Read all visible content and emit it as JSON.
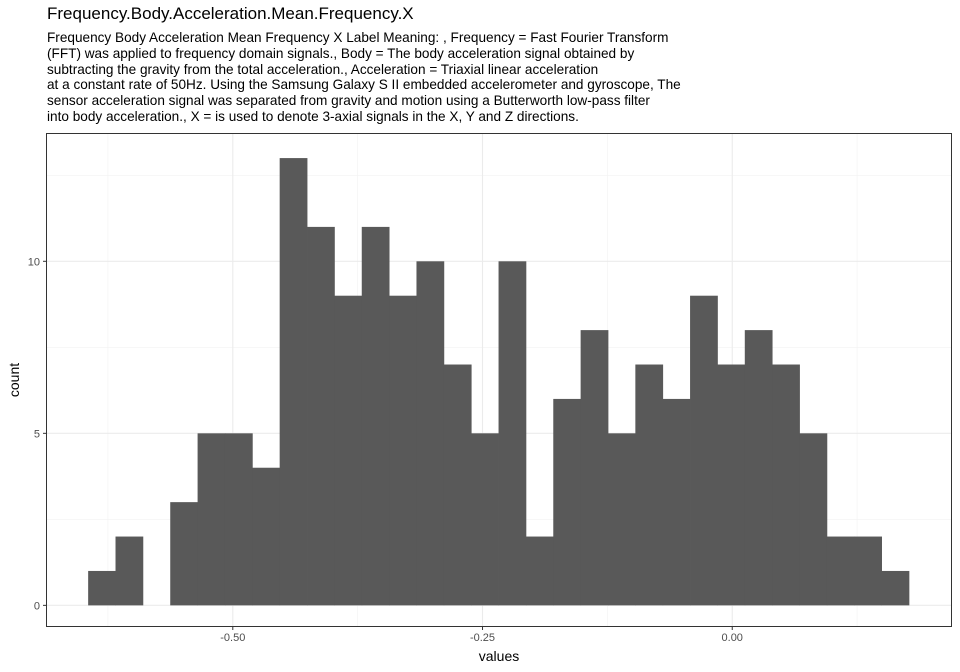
{
  "title": "Frequency.Body.Acceleration.Mean.Frequency.X",
  "subtitle_lines": [
    "Frequency Body Acceleration Mean Frequency X Label Meaning: , Frequency = Fast Fourier Transform",
    "(FFT) was applied to frequency domain signals., Body = The body acceleration signal obtained by",
    "subtracting the gravity from the total acceleration., Acceleration = Triaxial linear acceleration",
    "at a constant rate of 50Hz. Using the Samsung Galaxy S II embedded accelerometer and gyroscope, The",
    "sensor acceleration signal was separated from gravity and motion using a Butterworth low-pass filter",
    "into body acceleration., X = is used to denote 3-axial signals in the X, Y and Z directions."
  ],
  "chart_data": {
    "type": "bar",
    "subtype": "histogram",
    "xlabel": "values",
    "ylabel": "count",
    "xlim": [
      -0.686,
      0.219
    ],
    "ylim": [
      -0.6,
      13.7
    ],
    "x_ticks": [
      {
        "value": -0.5,
        "label": "-0.50"
      },
      {
        "value": -0.25,
        "label": "-0.25"
      },
      {
        "value": 0.0,
        "label": "0.00"
      }
    ],
    "y_ticks": [
      {
        "value": 0,
        "label": "0"
      },
      {
        "value": 5,
        "label": "5"
      },
      {
        "value": 10,
        "label": "10"
      }
    ],
    "bin_start": -0.6448,
    "bin_width": 0.02739,
    "counts": [
      1,
      2,
      0,
      3,
      5,
      5,
      4,
      13,
      11,
      9,
      11,
      9,
      10,
      7,
      5,
      10,
      2,
      6,
      8,
      5,
      7,
      6,
      9,
      7,
      8,
      7,
      5,
      2,
      2,
      1
    ],
    "bar_color": "#595959",
    "grid": true,
    "theme": "bw"
  }
}
